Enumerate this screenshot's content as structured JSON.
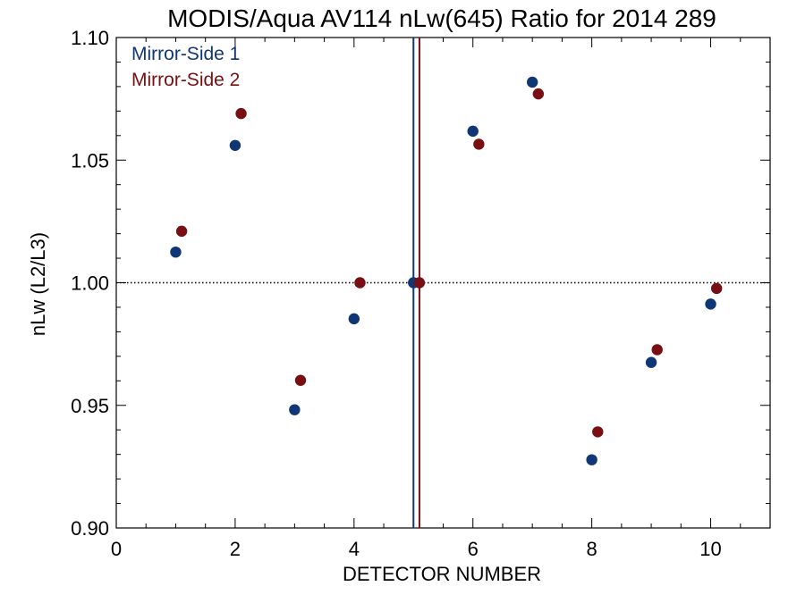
{
  "chart_data": {
    "type": "scatter",
    "title": "MODIS/Aqua AV114 nLw(645) Ratio for 2014 289",
    "xlabel": "DETECTOR NUMBER",
    "ylabel": "nLw (L2/L3)",
    "xlim": [
      0,
      11
    ],
    "ylim": [
      0.9,
      1.1
    ],
    "x_ticks": [
      0,
      2,
      4,
      6,
      8,
      10
    ],
    "x_tick_labels": [
      "0",
      "2",
      "4",
      "6",
      "8",
      "10"
    ],
    "y_ticks": [
      0.9,
      0.95,
      1.0,
      1.05,
      1.1
    ],
    "y_tick_labels": [
      "0.90",
      "0.95",
      "1.00",
      "1.05",
      "1.10"
    ],
    "reference_line_y": 1.0,
    "grid": false,
    "legend_position": "top-left",
    "series": [
      {
        "name": "Mirror-Side 1",
        "color": "#0f3675",
        "x": [
          1,
          2,
          3,
          4,
          5,
          6,
          7,
          8,
          9,
          10
        ],
        "values": [
          1.0125,
          1.056,
          0.9482,
          0.9853,
          1.0,
          1.0618,
          1.0818,
          0.9278,
          0.9675,
          0.9913
        ],
        "vertical_marker_x": 5.0
      },
      {
        "name": "Mirror-Side 2",
        "color": "#780f12",
        "x": [
          1.1,
          2.1,
          3.1,
          4.1,
          5.1,
          6.1,
          7.1,
          8.1,
          9.1,
          10.1
        ],
        "values": [
          1.021,
          1.069,
          0.9602,
          1.0,
          1.0,
          1.0565,
          1.077,
          0.9392,
          0.9727,
          0.9977
        ],
        "vertical_marker_x": 5.1
      }
    ]
  }
}
